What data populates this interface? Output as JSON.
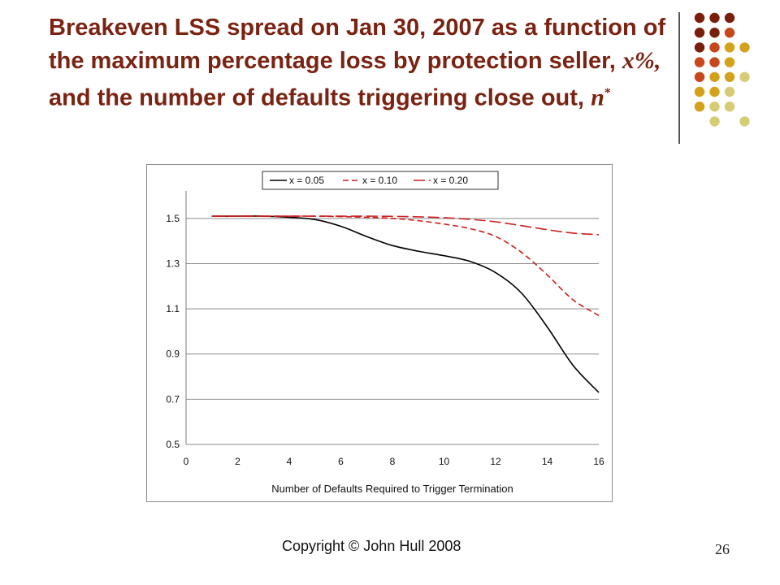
{
  "slide": {
    "title_part1": "Breakeven LSS spread on Jan 30, 2007 as a function of the maximum percentage loss by protection seller,",
    "title_var_x": "x%,",
    "title_part2": "and the number of defaults triggering close out,",
    "title_var_n": "n",
    "title_sup": "*",
    "copyright": "Copyright © John Hull  2008",
    "page_number": "26"
  },
  "decor": {
    "dot_colors": [
      "#7a1e0c",
      "#c8461b",
      "#d4a11a",
      "#d6cc76"
    ]
  },
  "chart_data": {
    "type": "line",
    "xlabel": "Number of Defaults Required to Trigger Termination",
    "ylabel": "",
    "xlim": [
      0,
      16
    ],
    "ylim": [
      0.5,
      1.6
    ],
    "xticks": [
      0,
      2,
      4,
      6,
      8,
      10,
      12,
      14,
      16
    ],
    "yticks": [
      0.5,
      0.7,
      0.9,
      1.1,
      1.3,
      1.5
    ],
    "ytick_labels": [
      "0.5",
      "0.7",
      "0.9",
      "1.1",
      "1.3",
      "1.5"
    ],
    "grid": "horizontal",
    "legend_position": "top",
    "series": [
      {
        "name": "x = 0.05",
        "style": "solid",
        "color": "#000000",
        "x": [
          1,
          2,
          3,
          4,
          5,
          6,
          7,
          8,
          9,
          10,
          11,
          12,
          13,
          14,
          15,
          16
        ],
        "y": [
          1.51,
          1.51,
          1.51,
          1.505,
          1.495,
          1.465,
          1.42,
          1.38,
          1.355,
          1.335,
          1.31,
          1.26,
          1.17,
          1.02,
          0.85,
          0.73
        ]
      },
      {
        "name": "x = 0.10",
        "style": "dashed",
        "color": "#cc1f1f",
        "x": [
          1,
          2,
          3,
          4,
          5,
          6,
          7,
          8,
          9,
          10,
          11,
          12,
          13,
          14,
          15,
          16
        ],
        "y": [
          1.51,
          1.51,
          1.51,
          1.51,
          1.51,
          1.508,
          1.505,
          1.5,
          1.49,
          1.475,
          1.455,
          1.42,
          1.35,
          1.25,
          1.14,
          1.07
        ]
      },
      {
        "name": "x = 0.20",
        "style": "longdash",
        "color": "#cc1f1f",
        "x": [
          1,
          2,
          3,
          4,
          5,
          6,
          7,
          8,
          9,
          10,
          11,
          12,
          13,
          14,
          15,
          16
        ],
        "y": [
          1.51,
          1.51,
          1.51,
          1.51,
          1.51,
          1.51,
          1.51,
          1.509,
          1.507,
          1.503,
          1.496,
          1.485,
          1.468,
          1.45,
          1.435,
          1.428
        ]
      }
    ]
  }
}
